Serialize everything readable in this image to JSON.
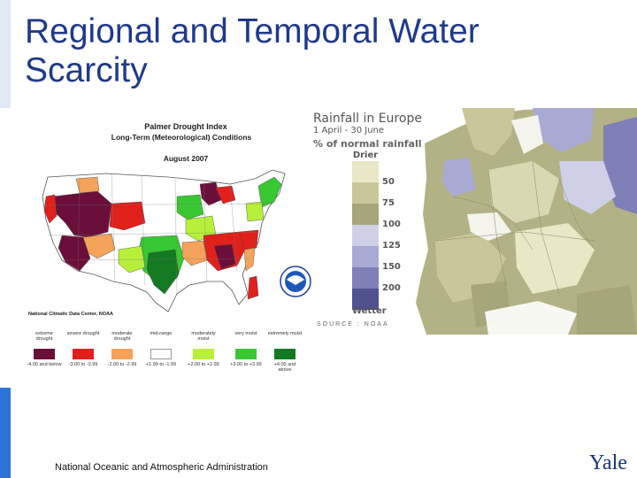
{
  "slide": {
    "title": "Regional and Temporal Water Scarcity",
    "footer": "National Oceanic and Atmospheric Administration",
    "logo_text": "Yale",
    "accent_color": "#2b74d8"
  },
  "us_map": {
    "title": "Palmer Drought Index",
    "subtitle": "Long-Term (Meteorological) Conditions",
    "date": "August 2007",
    "source": "National Climatic Data Center, NOAA",
    "legend": [
      {
        "label": "extreme drought",
        "range": "-4.00 and below",
        "color": "#6b0f3a"
      },
      {
        "label": "severe drought",
        "range": "-3.00 to -3.99",
        "color": "#e0201b"
      },
      {
        "label": "moderate drought",
        "range": "-2.00 to -2.99",
        "color": "#f5a25a"
      },
      {
        "label": "mid-range",
        "range": "+1.99 to -1.99",
        "color": "#ffffff"
      },
      {
        "label": "moderately moist",
        "range": "+2.00 to +2.99",
        "color": "#b7f03a"
      },
      {
        "label": "very moist",
        "range": "+3.00 to +3.99",
        "color": "#38c832"
      },
      {
        "label": "extremely moist",
        "range": "+4.00 and above",
        "color": "#137a22"
      }
    ]
  },
  "europe_map": {
    "title": "Rainfall in Europe",
    "dates": "1 April - 30 June",
    "measure": "% of normal rainfall",
    "drier_label": "Drier",
    "wetter_label": "Wetter",
    "scale": [
      {
        "value": "50",
        "color": "#e9e7c6"
      },
      {
        "value": "75",
        "color": "#c9c79a"
      },
      {
        "value": "100",
        "color": "#a7a57a"
      },
      {
        "value": "125",
        "color": "#cfd0e8"
      },
      {
        "value": "150",
        "color": "#a9aad4"
      },
      {
        "value": "200",
        "color": "#7f80b8"
      },
      {
        "value": "",
        "color": "#50528f"
      }
    ],
    "source": "SOURCE : NOAA"
  }
}
